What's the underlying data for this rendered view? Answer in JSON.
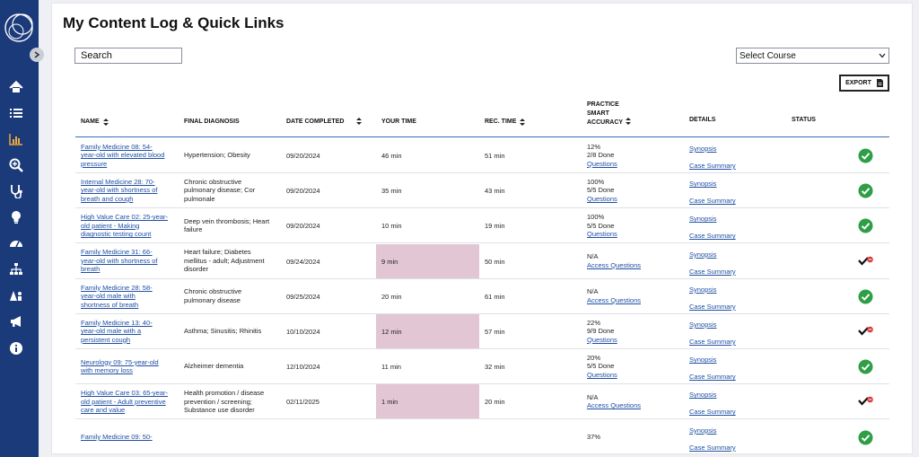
{
  "page": {
    "title": "My Content Log & Quick Links"
  },
  "search": {
    "placeholder": "Search"
  },
  "course_select": {
    "selected": "Select Course"
  },
  "export": {
    "label": "EXPORT"
  },
  "sidebar": {
    "items": [
      {
        "icon": "home-icon"
      },
      {
        "icon": "list-icon"
      },
      {
        "icon": "chart-icon"
      },
      {
        "icon": "zoom-icon"
      },
      {
        "icon": "stethoscope-icon"
      },
      {
        "icon": "lightbulb-icon"
      },
      {
        "icon": "dashboard-icon"
      },
      {
        "icon": "sitemap-icon"
      },
      {
        "icon": "users-icon"
      },
      {
        "icon": "megaphone-icon"
      },
      {
        "icon": "info-icon"
      }
    ]
  },
  "table": {
    "headers": {
      "name": "NAME",
      "final_diagnosis": "FINAL DIAGNOSIS",
      "date_completed": "DATE COMPLETED",
      "your_time": "YOUR TIME",
      "rec_time": "REC. TIME",
      "accuracy_1": "PRACTICE",
      "accuracy_2": "SMART",
      "accuracy_3": "ACCURACY",
      "details": "DETAILS",
      "status": "STATUS"
    },
    "details_labels": {
      "synopsis": "Synopsis",
      "case_summary": "Case Summary"
    },
    "rows": [
      {
        "name": [
          "Family Medicine 08: 54-",
          "year-old with elevated blood",
          "pressure"
        ],
        "diagnosis": [
          "Hypertension; Obesity"
        ],
        "date": "09/20/2024",
        "your_time": "46 min",
        "rec_time": "51 min",
        "acc_1": "12%",
        "acc_2": "2/8 Done",
        "acc_link": "Questions",
        "status": "complete",
        "over_time": false
      },
      {
        "name": [
          "Internal Medicine 28: 70-",
          "year-old with shortness of",
          "breath and cough"
        ],
        "diagnosis": [
          "Chronic obstructive",
          "pulmonary disease; Cor",
          "pulmonale"
        ],
        "date": "09/20/2024",
        "your_time": "35 min",
        "rec_time": "43 min",
        "acc_1": "100%",
        "acc_2": "5/5 Done",
        "acc_link": "Questions",
        "status": "complete",
        "over_time": false
      },
      {
        "name": [
          "High Value Care 02: 25-year-",
          "old patient - Making",
          "diagnostic testing count"
        ],
        "diagnosis": [
          "Deep vein thrombosis; Heart",
          "failure"
        ],
        "date": "09/20/2024",
        "your_time": "10 min",
        "rec_time": "19 min",
        "acc_1": "100%",
        "acc_2": "5/5 Done",
        "acc_link": "Questions",
        "status": "complete",
        "over_time": false
      },
      {
        "name": [
          "Family Medicine 31: 66-",
          "year-old with shortness of",
          "breath"
        ],
        "diagnosis": [
          "Heart failure; Diabetes",
          "mellitus - adult; Adjustment",
          "disorder"
        ],
        "date": "09/24/2024",
        "your_time": "9 min",
        "rec_time": "50 min",
        "acc_1": "N/A",
        "acc_2": "",
        "acc_link": "Access Questions",
        "status": "partial",
        "over_time": true
      },
      {
        "name": [
          "Family Medicine 28: 58-",
          "year-old male with",
          "shortness of breath"
        ],
        "diagnosis": [
          "Chronic obstructive",
          "pulmonary disease"
        ],
        "date": "09/25/2024",
        "your_time": "20 min",
        "rec_time": "61 min",
        "acc_1": "N/A",
        "acc_2": "",
        "acc_link": "Access Questions",
        "status": "complete",
        "over_time": false
      },
      {
        "name": [
          "Family Medicine 13: 40-",
          "year-old male with a",
          "persistent cough"
        ],
        "diagnosis": [
          "Asthma; Sinusitis; Rhinitis"
        ],
        "date": "10/10/2024",
        "your_time": "12 min",
        "rec_time": "57 min",
        "acc_1": "22%",
        "acc_2": "9/9 Done",
        "acc_link": "Questions",
        "status": "partial",
        "over_time": true
      },
      {
        "name": [
          "Neurology 09: 75-year-old",
          "with memory loss"
        ],
        "diagnosis": [
          "Alzheimer dementia"
        ],
        "date": "12/10/2024",
        "your_time": "11 min",
        "rec_time": "32 min",
        "acc_1": "20%",
        "acc_2": "5/5 Done",
        "acc_link": "Questions",
        "status": "complete",
        "over_time": false
      },
      {
        "name": [
          "High Value Care 03: 65-year-",
          "old patient - Adult preventive",
          "care and value"
        ],
        "diagnosis": [
          "Health promotion / disease",
          "prevention / screening;",
          "Substance use disorder"
        ],
        "date": "02/11/2025",
        "your_time": "1 min",
        "rec_time": "20 min",
        "acc_1": "N/A",
        "acc_2": "",
        "acc_link": "Access Questions",
        "status": "partial",
        "over_time": true
      },
      {
        "name": [
          "Family Medicine 09: 50-"
        ],
        "diagnosis": [],
        "date": "",
        "your_time": "",
        "rec_time": "",
        "acc_1": "37%",
        "acc_2": "",
        "acc_link": "",
        "status": "complete",
        "over_time": false
      }
    ]
  },
  "colors": {
    "sidebar": "#1b3a7a",
    "link": "#1f4fa3",
    "check": "#2e9e47",
    "highlight": "#e3c6d3",
    "alert": "#d9383a"
  }
}
